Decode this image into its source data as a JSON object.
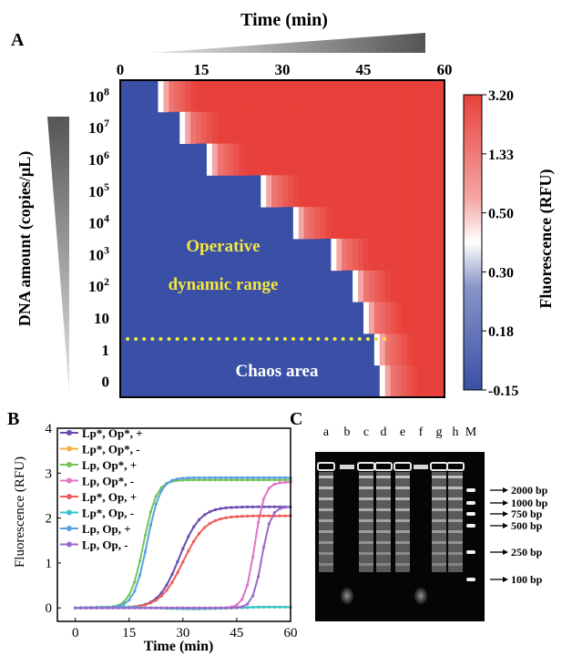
{
  "panels": {
    "a": "A",
    "b": "B",
    "c": "C"
  },
  "chart_data": [
    {
      "type": "heatmap",
      "panel": "A",
      "xlabel": "Time (min)",
      "ylabel": "DNA amount (copies/µL)",
      "x_ticks": [
        "0",
        "15",
        "30",
        "45",
        "60"
      ],
      "xlim": [
        0,
        60
      ],
      "rows": [
        {
          "label_base": "10",
          "label_exp": "8",
          "onset_min": 6
        },
        {
          "label_base": "10",
          "label_exp": "7",
          "onset_min": 10
        },
        {
          "label_base": "10",
          "label_exp": "6",
          "onset_min": 15
        },
        {
          "label_base": "10",
          "label_exp": "5",
          "onset_min": 25
        },
        {
          "label_base": "10",
          "label_exp": "4",
          "onset_min": 31
        },
        {
          "label_base": "10",
          "label_exp": "3",
          "onset_min": 38
        },
        {
          "label_base": "10",
          "label_exp": "2",
          "onset_min": 42
        },
        {
          "label_base": "10",
          "label_exp": "",
          "onset_min": 44
        },
        {
          "label_base": "1",
          "label_exp": "",
          "onset_min": 46
        },
        {
          "label_base": "0",
          "label_exp": "",
          "onset_min": 47
        }
      ],
      "colorbar": {
        "label": "Fluorescence (RFU)",
        "ticks": [
          "3.20",
          "1.33",
          "0.50",
          "0.30",
          "0.18",
          "-0.15"
        ],
        "low_color": "#3a4fa6",
        "mid_color": "#ffffff",
        "high_color": "#e8413b"
      },
      "annotations": {
        "line1": "Operative",
        "line2": "dynamic range",
        "chaos": "Chaos area",
        "dotted_color": "#f2e642"
      }
    },
    {
      "type": "line",
      "panel": "B",
      "xlabel": "Time (min)",
      "ylabel": "Fluorescence (RFU)",
      "xlim": [
        -5,
        60
      ],
      "ylim": [
        -0.3,
        4
      ],
      "x_ticks": [
        0,
        15,
        30,
        45,
        60
      ],
      "y_ticks": [
        0,
        1,
        2,
        3,
        4
      ],
      "series": [
        {
          "name": "Lp*, Op*, +",
          "color": "#6a4ab0",
          "start": 0,
          "plateau": 2.25,
          "mid": 29,
          "k": 0.35
        },
        {
          "name": "Lp*, Op*, -",
          "color": "#f5b04a",
          "start": 0,
          "plateau": 0.0,
          "mid": 80,
          "k": 0.3
        },
        {
          "name": "Lp, Op*, +",
          "color": "#74c45a",
          "start": 0,
          "plateau": 2.85,
          "mid": 19,
          "k": 0.55
        },
        {
          "name": "Lp, Op*, -",
          "color": "#e074c8",
          "start": 0,
          "plateau": 2.8,
          "mid": 50,
          "k": 0.75
        },
        {
          "name": "Lp*, Op, +",
          "color": "#ee5a5a",
          "start": 0,
          "plateau": 2.05,
          "mid": 30,
          "k": 0.32
        },
        {
          "name": "Lp*, Op, -",
          "color": "#34c3cf",
          "start": 0,
          "plateau": 0.0,
          "mid": 80,
          "k": 0.3
        },
        {
          "name": "Lp, Op, +",
          "color": "#5aa0e0",
          "start": 0,
          "plateau": 2.9,
          "mid": 20,
          "k": 0.55
        },
        {
          "name": "Lp, Op, -",
          "color": "#9a6ac8",
          "start": 0,
          "plateau": 2.25,
          "mid": 52,
          "k": 0.8
        }
      ]
    },
    {
      "type": "gel",
      "panel": "C",
      "lanes": [
        "a",
        "b",
        "c",
        "d",
        "e",
        "f",
        "g",
        "h",
        "M"
      ],
      "ladder": [
        "2000 bp",
        "1000 bp",
        "750 bp",
        "500 bp",
        "250 bp",
        "100 bp"
      ]
    }
  ]
}
